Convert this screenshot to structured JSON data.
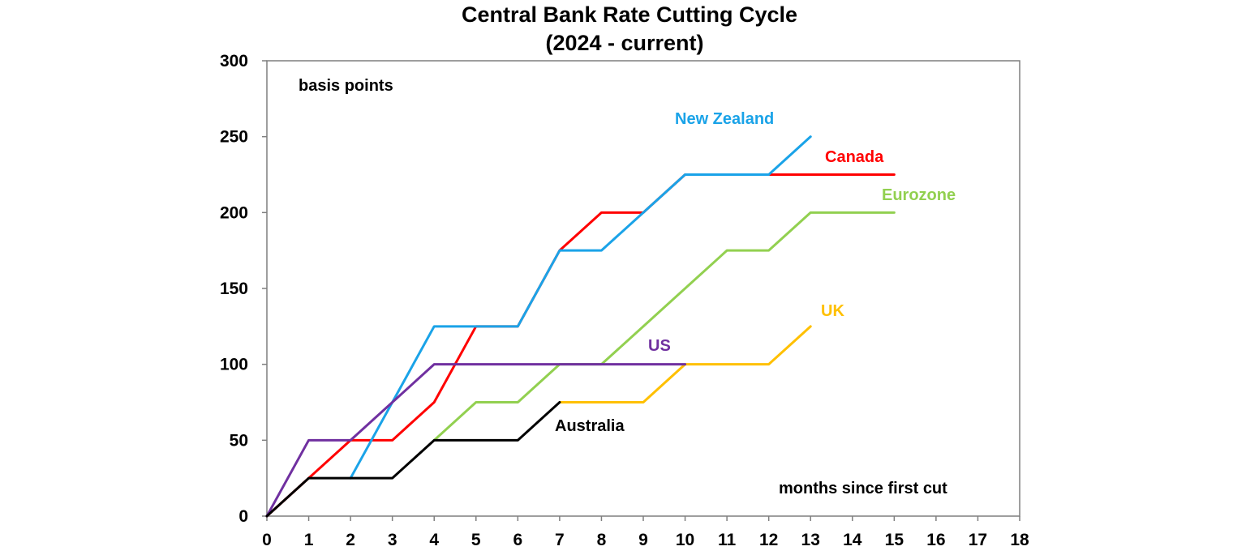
{
  "chart_data": {
    "type": "line",
    "title": "Central Bank Rate Cutting Cycle",
    "subtitle": "(2024 - current)",
    "ylabel": "basis points",
    "xlabel": "months since first cut",
    "xlim": [
      0,
      18
    ],
    "ylim": [
      0,
      300
    ],
    "x_ticks": [
      "0",
      "1",
      "2",
      "3",
      "4",
      "5",
      "6",
      "7",
      "8",
      "9",
      "10",
      "11",
      "12",
      "13",
      "14",
      "15",
      "16",
      "17",
      "18"
    ],
    "y_ticks": [
      "0",
      "50",
      "100",
      "150",
      "200",
      "250",
      "300"
    ],
    "grid": false,
    "legend": "inline labels",
    "series": [
      {
        "name": "Canada",
        "color": "#FF0000",
        "points": [
          [
            0,
            0
          ],
          [
            1,
            25
          ],
          [
            2,
            50
          ],
          [
            3,
            50
          ],
          [
            4,
            75
          ],
          [
            5,
            125
          ],
          [
            6,
            125
          ],
          [
            7,
            175
          ],
          [
            8,
            200
          ],
          [
            9,
            200
          ],
          [
            10,
            225
          ],
          [
            11,
            225
          ],
          [
            12,
            225
          ],
          [
            13,
            225
          ],
          [
            14,
            225
          ],
          [
            15,
            225
          ]
        ]
      },
      {
        "name": "New Zealand",
        "color": "#1AA3E8",
        "points": [
          [
            2,
            25
          ],
          [
            3,
            75
          ],
          [
            4,
            125
          ],
          [
            5,
            125
          ],
          [
            6,
            125
          ],
          [
            7,
            175
          ],
          [
            8,
            175
          ],
          [
            9,
            200
          ],
          [
            10,
            225
          ],
          [
            11,
            225
          ],
          [
            12,
            225
          ],
          [
            13,
            250
          ]
        ]
      },
      {
        "name": "Eurozone",
        "color": "#92D050",
        "points": [
          [
            4,
            50
          ],
          [
            5,
            75
          ],
          [
            6,
            75
          ],
          [
            7,
            100
          ],
          [
            8,
            100
          ],
          [
            9,
            125
          ],
          [
            10,
            150
          ],
          [
            11,
            175
          ],
          [
            12,
            175
          ],
          [
            13,
            200
          ],
          [
            14,
            200
          ],
          [
            15,
            200
          ]
        ]
      },
      {
        "name": "UK",
        "color": "#FFC000",
        "points": [
          [
            7,
            75
          ],
          [
            8,
            75
          ],
          [
            9,
            75
          ],
          [
            10,
            100
          ],
          [
            11,
            100
          ],
          [
            12,
            100
          ],
          [
            13,
            125
          ]
        ]
      },
      {
        "name": "US",
        "color": "#7030A0",
        "points": [
          [
            0,
            0
          ],
          [
            1,
            50
          ],
          [
            2,
            50
          ],
          [
            3,
            75
          ],
          [
            4,
            100
          ],
          [
            5,
            100
          ],
          [
            6,
            100
          ],
          [
            7,
            100
          ],
          [
            8,
            100
          ],
          [
            9,
            100
          ],
          [
            10,
            100
          ]
        ]
      },
      {
        "name": "Australia",
        "color": "#000000",
        "points": [
          [
            0,
            0
          ],
          [
            1,
            25
          ],
          [
            2,
            25
          ],
          [
            3,
            25
          ],
          [
            4,
            50
          ],
          [
            5,
            50
          ],
          [
            6,
            50
          ],
          [
            7,
            75
          ]
        ]
      }
    ]
  }
}
